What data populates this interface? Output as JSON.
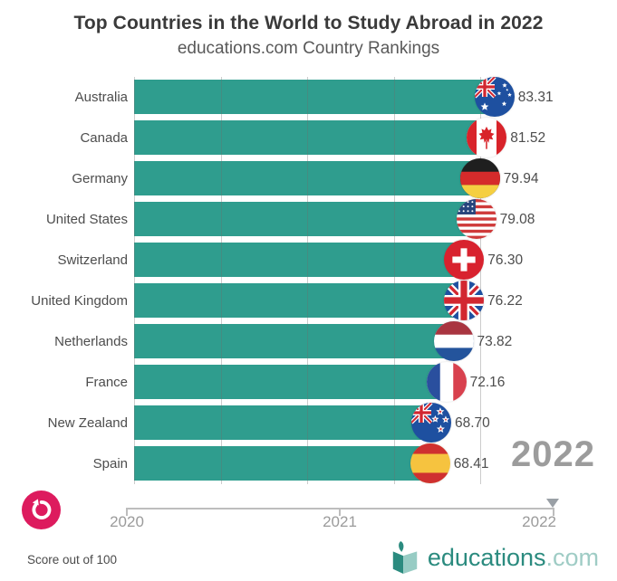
{
  "header": {
    "title": "Top Countries in the World to Study Abroad in 2022",
    "subtitle": "educations.com Country Rankings"
  },
  "chart_data": {
    "type": "bar",
    "orientation": "horizontal",
    "title": "Top Countries in the World to Study Abroad in 2022",
    "subtitle": "educations.com Country Rankings",
    "categories": [
      "Australia",
      "Canada",
      "Germany",
      "United States",
      "Switzerland",
      "United Kingdom",
      "Netherlands",
      "France",
      "New Zealand",
      "Spain"
    ],
    "values": [
      83.31,
      81.52,
      79.94,
      79.08,
      76.3,
      76.22,
      73.82,
      72.16,
      68.7,
      68.41
    ],
    "value_labels": [
      "83.31",
      "81.52",
      "79.94",
      "79.08",
      "76.30",
      "76.22",
      "73.82",
      "72.16",
      "68.70",
      "68.41"
    ],
    "flags": [
      "australia",
      "canada",
      "germany",
      "united-states",
      "switzerland",
      "united-kingdom",
      "netherlands",
      "france",
      "new-zealand",
      "spain"
    ],
    "bar_color": "#2f9d8e",
    "current_year": "2022",
    "axis_gridline_scores": [
      0,
      20,
      40,
      60,
      80
    ],
    "xlim": [
      0,
      100
    ],
    "grid": true,
    "legend": "none",
    "note": "Score out of 100"
  },
  "timeline": {
    "years": [
      "2020",
      "2021",
      "2022"
    ]
  },
  "footer": {
    "note": "Score out of 100",
    "brand_name": "educations",
    "brand_tld": ".com"
  },
  "colors": {
    "bar": "#2f9d8e",
    "replay_pink": "#dd1b5e",
    "brand_teal_dark": "#2b8b7f",
    "brand_teal_light": "#97ccc4",
    "year_watermark": "#9c9c9c"
  }
}
